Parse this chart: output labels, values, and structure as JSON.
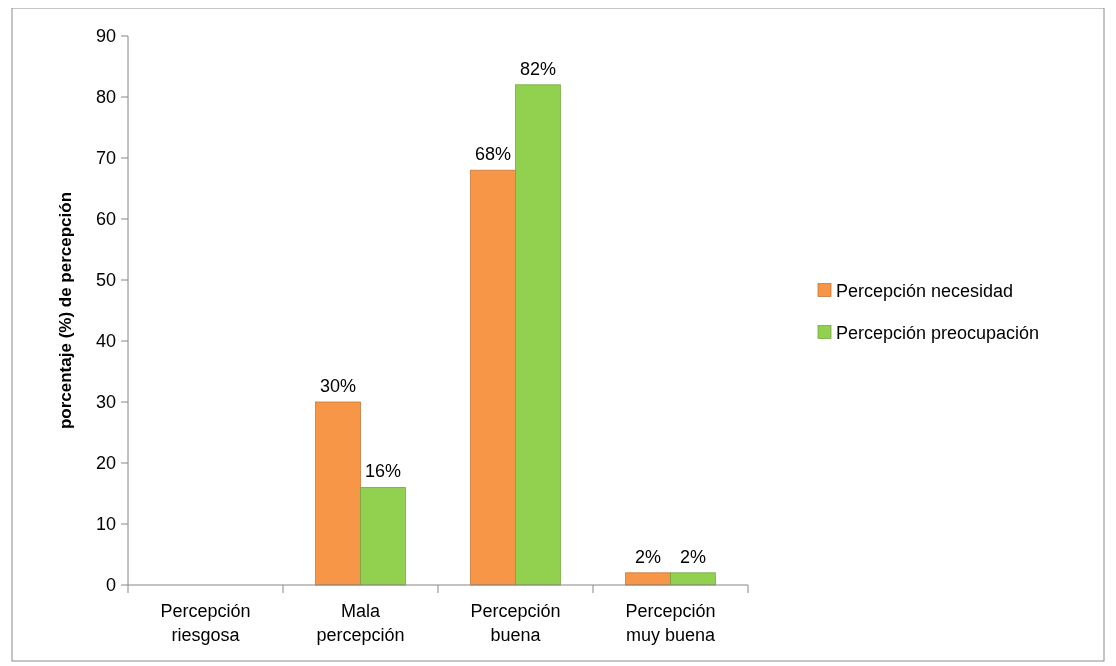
{
  "chart_data": {
    "type": "bar",
    "ylabel": "porcentaje (%) de percepción",
    "categories": [
      "Percepción riesgosa",
      "Mala percepción",
      "Percepción buena",
      "Percepción muy buena"
    ],
    "series": [
      {
        "name": "Percepción necesidad",
        "color": "#f79646",
        "values": [
          0,
          30,
          68,
          2
        ],
        "value_labels": [
          null,
          "30%",
          "68%",
          "2%"
        ]
      },
      {
        "name": "Percepción preocupación",
        "color": "#92d050",
        "values": [
          0,
          16,
          82,
          2
        ],
        "value_labels": [
          null,
          "16%",
          "82%",
          "2%"
        ]
      }
    ],
    "ylim": [
      0,
      90
    ],
    "yticks": [
      0,
      10,
      20,
      30,
      40,
      50,
      60,
      70,
      80,
      90
    ],
    "grid": false,
    "legend": "right"
  }
}
